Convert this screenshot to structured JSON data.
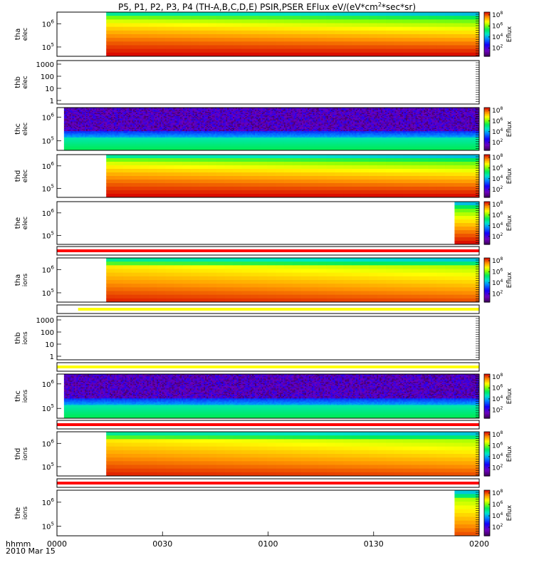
{
  "chart_data": {
    "type": "heatmap",
    "title_main": "P5, P1, P2, P3, P4 (TH-A,B,C,D,E) PSIR,PSER EFlux eV/(eV*cm",
    "title_sup": "2",
    "title_end": "*sec*sr)",
    "colorbar_label": "Eflux",
    "colorbar_ticks": [
      {
        "base": "10",
        "exp": "2",
        "value": 2
      },
      {
        "base": "10",
        "exp": "4",
        "value": 4
      },
      {
        "base": "10",
        "exp": "6",
        "value": 6
      },
      {
        "base": "10",
        "exp": "8",
        "value": 8
      }
    ],
    "colorbar_range": [
      0.5,
      8.5
    ],
    "x_axis": {
      "ticks": [
        "0000",
        "0030",
        "0100",
        "0130",
        "0200"
      ],
      "tick_minutes": [
        0,
        30,
        60,
        90,
        120
      ],
      "range_minutes": [
        0,
        120
      ],
      "corner_label_1": "hhmm",
      "corner_label_2": "2010 Mar 15"
    },
    "panels": [
      {
        "id": "tha-elec",
        "label1": "tha",
        "label2": "elec",
        "kind": "spec",
        "pattern": "elec_full",
        "data_start": 14,
        "data_end": 120,
        "ymin_exp": 4.6,
        "ymax_exp": 6.5,
        "yticks": [
          {
            "e": "6",
            "v": 6
          },
          {
            "e": "5",
            "v": 5
          }
        ]
      },
      {
        "id": "thb-elec",
        "label1": "thb",
        "label2": "elec",
        "kind": "empty",
        "yticks_lin": [
          "1000",
          "100",
          "10",
          "1"
        ]
      },
      {
        "id": "thc-elec",
        "label1": "thc",
        "label2": "elec",
        "kind": "spec",
        "pattern": "thc",
        "data_start": 2,
        "data_end": 120,
        "ymin_exp": 4.6,
        "ymax_exp": 6.4,
        "yticks": [
          {
            "e": "6",
            "v": 6
          },
          {
            "e": "5",
            "v": 5
          }
        ]
      },
      {
        "id": "thd-elec",
        "label1": "thd",
        "label2": "elec",
        "kind": "spec",
        "pattern": "elec_full",
        "data_start": 14,
        "data_end": 120,
        "ymin_exp": 4.6,
        "ymax_exp": 6.5,
        "yticks": [
          {
            "e": "6",
            "v": 6
          },
          {
            "e": "5",
            "v": 5
          }
        ]
      },
      {
        "id": "the-elec",
        "label1": "the",
        "label2": "elec",
        "kind": "spec",
        "pattern": "elec_full",
        "data_start": 113,
        "data_end": 120,
        "ymin_exp": 4.6,
        "ymax_exp": 6.5,
        "yticks": [
          {
            "e": "6",
            "v": 6
          },
          {
            "e": "5",
            "v": 5
          }
        ]
      },
      {
        "id": "bar1",
        "kind": "bar",
        "color": "#ff0000",
        "data_start": 0,
        "data_end": 120
      },
      {
        "id": "tha-ions",
        "label1": "tha",
        "label2": "ions",
        "kind": "spec",
        "pattern": "ions",
        "data_start": 14,
        "data_end": 120,
        "ymin_exp": 4.6,
        "ymax_exp": 6.5,
        "yticks": [
          {
            "e": "6",
            "v": 6
          },
          {
            "e": "5",
            "v": 5
          }
        ]
      },
      {
        "id": "bar2",
        "kind": "bar",
        "color": "#ffff00",
        "data_start": 6,
        "data_end": 120
      },
      {
        "id": "thb-ions",
        "label1": "thb",
        "label2": "ions",
        "kind": "empty",
        "yticks_lin": [
          "1000",
          "100",
          "10",
          "1"
        ]
      },
      {
        "id": "bar3",
        "kind": "bar",
        "color": "#ffff00",
        "data_start": 0,
        "data_end": 120
      },
      {
        "id": "thc-ions",
        "label1": "thc",
        "label2": "ions",
        "kind": "spec",
        "pattern": "thc",
        "data_start": 2,
        "data_end": 120,
        "ymin_exp": 4.6,
        "ymax_exp": 6.4,
        "yticks": [
          {
            "e": "6",
            "v": 6
          },
          {
            "e": "5",
            "v": 5
          }
        ]
      },
      {
        "id": "bar4",
        "kind": "bar",
        "color": "#ff0000",
        "data_start": 0,
        "data_end": 120
      },
      {
        "id": "thd-ions",
        "label1": "thd",
        "label2": "ions",
        "kind": "spec",
        "pattern": "ions",
        "data_start": 14,
        "data_end": 120,
        "ymin_exp": 4.6,
        "ymax_exp": 6.5,
        "yticks": [
          {
            "e": "6",
            "v": 6
          },
          {
            "e": "5",
            "v": 5
          }
        ]
      },
      {
        "id": "bar5",
        "kind": "bar",
        "color": "#ff0000",
        "data_start": 0,
        "data_end": 120
      },
      {
        "id": "the-ions",
        "label1": "the",
        "label2": "ions",
        "kind": "spec",
        "pattern": "ions",
        "data_start": 113,
        "data_end": 120,
        "ymin_exp": 4.6,
        "ymax_exp": 6.5,
        "yticks": [
          {
            "e": "6",
            "v": 6
          },
          {
            "e": "5",
            "v": 5
          }
        ]
      }
    ]
  }
}
